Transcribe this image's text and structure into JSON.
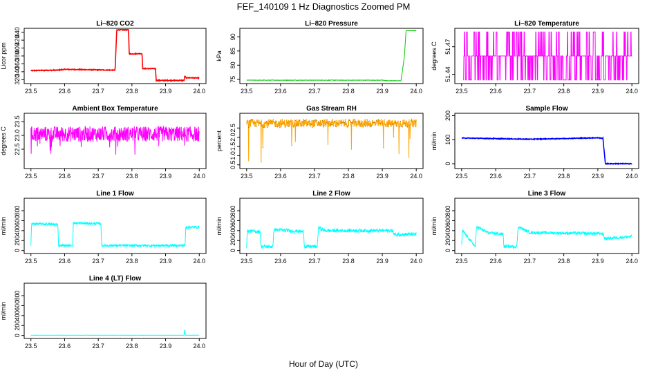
{
  "figure": {
    "title": "FEF_140109  1 Hz Diagnostics Zoomed PM",
    "xlabel": "Hour of Day (UTC)"
  },
  "chart_data": [
    {
      "id": "co2",
      "type": "line",
      "title": "Li–820 CO2",
      "ylabel": "Licor ppm",
      "color": "#ff0000",
      "xlim": [
        23.48,
        24.02
      ],
      "ylim": [
        310,
        450
      ],
      "yticks": [
        320,
        340,
        360,
        380,
        400,
        420,
        440
      ],
      "xticks": [
        23.5,
        23.6,
        23.7,
        23.8,
        23.9,
        24.0
      ],
      "x": [
        23.5,
        23.58,
        23.6,
        23.75,
        23.755,
        23.79,
        23.792,
        23.83,
        23.832,
        23.87,
        23.872,
        23.955,
        23.957,
        23.96,
        24.0
      ],
      "y": [
        343,
        344,
        346,
        344,
        446,
        446,
        385,
        386,
        348,
        348,
        318,
        318,
        330,
        325,
        324
      ],
      "noise": 1
    },
    {
      "id": "pressure",
      "type": "line",
      "title": "Li–820 Pressure",
      "ylabel": "kPa",
      "color": "#00cc00",
      "xlim": [
        23.48,
        24.02
      ],
      "ylim": [
        73.5,
        93
      ],
      "yticks": [
        75,
        80,
        85,
        90
      ],
      "xticks": [
        23.5,
        23.6,
        23.7,
        23.8,
        23.9,
        24.0
      ],
      "x": [
        23.5,
        23.9,
        23.915,
        23.955,
        23.965,
        23.97,
        24.0
      ],
      "y": [
        74.7,
        74.7,
        74.5,
        74.5,
        83,
        92.2,
        92.2
      ],
      "noise": 0.08
    },
    {
      "id": "li820temp",
      "type": "line",
      "title": "Li–820 Temperature",
      "ylabel": "degrees C",
      "color": "#ff00ff",
      "xlim": [
        23.48,
        24.02
      ],
      "ylim": [
        51.43,
        51.49
      ],
      "yticks": [
        51.44,
        51.47
      ],
      "xticks": [
        23.5,
        23.6,
        23.7,
        23.8,
        23.9,
        24.0
      ],
      "levels": [
        51.434,
        51.46,
        51.486
      ],
      "x_start": 23.505,
      "x_end": 24.0
    },
    {
      "id": "ambient",
      "type": "line",
      "title": "Ambient Box Temperature",
      "ylabel": "degrees C",
      "color": "#ff00ff",
      "xlim": [
        23.48,
        24.02
      ],
      "ylim": [
        21.8,
        23.8
      ],
      "yticks": [
        22.5,
        23.0,
        23.5
      ],
      "xticks": [
        23.5,
        23.6,
        23.7,
        23.8,
        23.9,
        24.0
      ],
      "x": [
        23.5,
        24.0
      ],
      "y": [
        23.05,
        23.05
      ],
      "noise": 0.28
    },
    {
      "id": "rh",
      "type": "line",
      "title": "Gas Stream RH",
      "ylabel": "percent",
      "color": "#ffa500",
      "marker_color": "#8b5a00",
      "xlim": [
        23.48,
        24.02
      ],
      "ylim": [
        0.3,
        3.3
      ],
      "yticks": [
        0.5,
        1.0,
        1.5,
        2.0,
        2.5
      ],
      "xticks": [
        23.5,
        23.6,
        23.7,
        23.8,
        23.9,
        24.0
      ],
      "x": [
        23.5,
        24.0
      ],
      "y": [
        2.75,
        2.75
      ],
      "noise": 0.22
    },
    {
      "id": "sample",
      "type": "line",
      "title": "Sample Flow",
      "ylabel": "ml/min",
      "color": "#0000ff",
      "xlim": [
        23.48,
        24.02
      ],
      "ylim": [
        -20,
        210
      ],
      "yticks": [
        0,
        100,
        200
      ],
      "xticks": [
        23.5,
        23.6,
        23.7,
        23.8,
        23.9,
        24.0
      ],
      "x": [
        23.5,
        23.7,
        23.9,
        23.915,
        23.922,
        24.0
      ],
      "y": [
        107,
        102,
        108,
        106,
        0,
        0
      ],
      "noise": 1.5
    },
    {
      "id": "line1",
      "type": "line",
      "title": "Line 1 Flow",
      "ylabel": "ml/min",
      "color": "#00ffff",
      "xlim": [
        23.48,
        24.02
      ],
      "ylim": [
        -60,
        1050
      ],
      "yticks": [
        0,
        200,
        400,
        600,
        800
      ],
      "xticks": [
        23.5,
        23.6,
        23.7,
        23.8,
        23.9,
        24.0
      ],
      "x": [
        23.5,
        23.502,
        23.58,
        23.582,
        23.624,
        23.626,
        23.708,
        23.71,
        23.958,
        23.96,
        24.0
      ],
      "y": [
        100,
        540,
        520,
        100,
        100,
        550,
        540,
        100,
        100,
        470,
        470
      ],
      "noise": 25
    },
    {
      "id": "line2",
      "type": "line",
      "title": "Line 2 Flow",
      "ylabel": "ml/min",
      "color": "#00ffff",
      "xlim": [
        23.48,
        24.02
      ],
      "ylim": [
        -60,
        1050
      ],
      "yticks": [
        0,
        200,
        400,
        600,
        800
      ],
      "xticks": [
        23.5,
        23.6,
        23.7,
        23.8,
        23.9,
        24.0
      ],
      "x": [
        23.5,
        23.502,
        23.54,
        23.542,
        23.578,
        23.58,
        23.668,
        23.67,
        23.708,
        23.712,
        23.73,
        23.92,
        23.93,
        23.935,
        24.0
      ],
      "y": [
        80,
        390,
        380,
        80,
        80,
        420,
        380,
        80,
        80,
        460,
        400,
        400,
        400,
        320,
        330
      ],
      "noise": 35
    },
    {
      "id": "line3",
      "type": "line",
      "title": "Line 3 Flow",
      "ylabel": "ml/min",
      "color": "#00ffff",
      "xlim": [
        23.48,
        24.02
      ],
      "ylim": [
        -60,
        1050
      ],
      "yticks": [
        0,
        200,
        400,
        600,
        800
      ],
      "xticks": [
        23.5,
        23.6,
        23.7,
        23.8,
        23.9,
        24.0
      ],
      "x": [
        23.5,
        23.502,
        23.54,
        23.544,
        23.58,
        23.622,
        23.624,
        23.662,
        23.666,
        23.7,
        23.9,
        23.915,
        23.92,
        24.0
      ],
      "y": [
        100,
        400,
        80,
        480,
        350,
        330,
        80,
        80,
        480,
        360,
        340,
        340,
        240,
        280
      ],
      "noise": 30
    },
    {
      "id": "line4",
      "type": "line",
      "title": "Line 4 (LT) Flow",
      "ylabel": "ml/min",
      "color": "#00ffff",
      "xlim": [
        23.48,
        24.02
      ],
      "ylim": [
        -60,
        1050
      ],
      "yticks": [
        0,
        200,
        400,
        600,
        800
      ],
      "xticks": [
        23.5,
        23.6,
        23.7,
        23.8,
        23.9,
        24.0
      ],
      "x": [
        23.5,
        23.955,
        23.957,
        23.959,
        23.961,
        24.0
      ],
      "y": [
        5,
        5,
        130,
        5,
        5,
        5
      ],
      "noise": 2
    }
  ]
}
